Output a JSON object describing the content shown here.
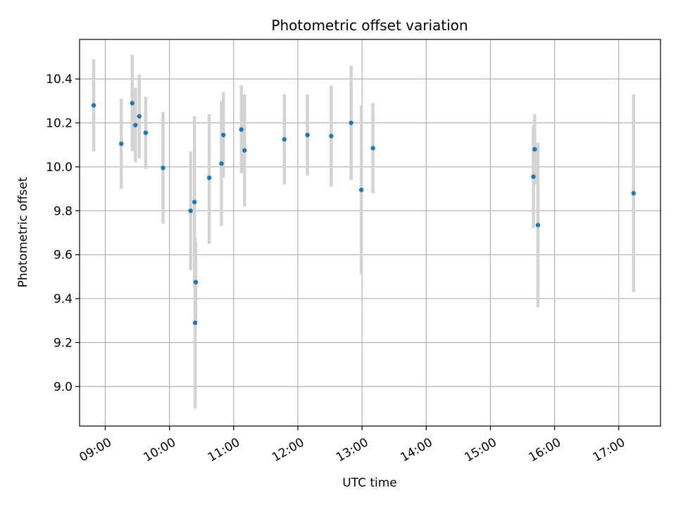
{
  "chart_data": {
    "type": "scatter",
    "title": "Photometric offset variation",
    "xlabel": "UTC time",
    "ylabel": "Photometric offset",
    "x_unit": "hours",
    "xlim": [
      8.6,
      17.65
    ],
    "ylim": [
      8.82,
      10.58
    ],
    "grid": true,
    "x_ticks": [
      {
        "value": 9,
        "label": "09:00"
      },
      {
        "value": 10,
        "label": "10:00"
      },
      {
        "value": 11,
        "label": "11:00"
      },
      {
        "value": 12,
        "label": "12:00"
      },
      {
        "value": 13,
        "label": "13:00"
      },
      {
        "value": 14,
        "label": "14:00"
      },
      {
        "value": 15,
        "label": "15:00"
      },
      {
        "value": 16,
        "label": "16:00"
      },
      {
        "value": 17,
        "label": "17:00"
      }
    ],
    "y_ticks": [
      {
        "value": 9.0,
        "label": "9.0"
      },
      {
        "value": 9.2,
        "label": "9.2"
      },
      {
        "value": 9.4,
        "label": "9.4"
      },
      {
        "value": 9.6,
        "label": "9.6"
      },
      {
        "value": 9.8,
        "label": "9.8"
      },
      {
        "value": 10.0,
        "label": "10.0"
      },
      {
        "value": 10.2,
        "label": "10.2"
      },
      {
        "value": 10.4,
        "label": "10.4"
      }
    ],
    "colors": {
      "point": "#1f77b4",
      "errorbar": "#d3d3d3",
      "grid": "#b0b0b0"
    },
    "points": [
      {
        "x": 8.82,
        "y": 10.28,
        "ylow": 10.07,
        "yhigh": 10.49
      },
      {
        "x": 9.25,
        "y": 10.105,
        "ylow": 9.9,
        "yhigh": 10.31
      },
      {
        "x": 9.42,
        "y": 10.29,
        "ylow": 10.07,
        "yhigh": 10.51
      },
      {
        "x": 9.47,
        "y": 10.19,
        "ylow": 10.02,
        "yhigh": 10.36
      },
      {
        "x": 9.53,
        "y": 10.23,
        "ylow": 10.04,
        "yhigh": 10.42
      },
      {
        "x": 9.63,
        "y": 10.155,
        "ylow": 9.99,
        "yhigh": 10.32
      },
      {
        "x": 9.9,
        "y": 9.995,
        "ylow": 9.74,
        "yhigh": 10.25
      },
      {
        "x": 10.33,
        "y": 9.8,
        "ylow": 9.53,
        "yhigh": 10.07
      },
      {
        "x": 10.39,
        "y": 9.84,
        "ylow": 9.45,
        "yhigh": 10.23
      },
      {
        "x": 10.41,
        "y": 9.475,
        "ylow": 9.29,
        "yhigh": 9.66
      },
      {
        "x": 10.4,
        "y": 9.29,
        "ylow": 8.9,
        "yhigh": 9.68
      },
      {
        "x": 10.62,
        "y": 9.95,
        "ylow": 9.65,
        "yhigh": 10.24
      },
      {
        "x": 10.81,
        "y": 10.015,
        "ylow": 9.73,
        "yhigh": 10.3
      },
      {
        "x": 10.84,
        "y": 10.145,
        "ylow": 9.95,
        "yhigh": 10.34
      },
      {
        "x": 11.12,
        "y": 10.17,
        "ylow": 9.97,
        "yhigh": 10.37
      },
      {
        "x": 11.17,
        "y": 10.075,
        "ylow": 9.82,
        "yhigh": 10.33
      },
      {
        "x": 11.79,
        "y": 10.125,
        "ylow": 9.92,
        "yhigh": 10.33
      },
      {
        "x": 12.15,
        "y": 10.145,
        "ylow": 9.96,
        "yhigh": 10.33
      },
      {
        "x": 12.52,
        "y": 10.14,
        "ylow": 9.91,
        "yhigh": 10.37
      },
      {
        "x": 12.83,
        "y": 10.2,
        "ylow": 9.94,
        "yhigh": 10.46
      },
      {
        "x": 12.99,
        "y": 9.895,
        "ylow": 9.51,
        "yhigh": 10.28
      },
      {
        "x": 13.17,
        "y": 10.085,
        "ylow": 9.88,
        "yhigh": 10.29
      },
      {
        "x": 15.67,
        "y": 9.955,
        "ylow": 9.72,
        "yhigh": 10.19
      },
      {
        "x": 15.69,
        "y": 10.08,
        "ylow": 9.92,
        "yhigh": 10.24
      },
      {
        "x": 15.74,
        "y": 9.735,
        "ylow": 9.36,
        "yhigh": 10.11
      },
      {
        "x": 17.23,
        "y": 9.88,
        "ylow": 9.43,
        "yhigh": 10.33
      }
    ]
  }
}
